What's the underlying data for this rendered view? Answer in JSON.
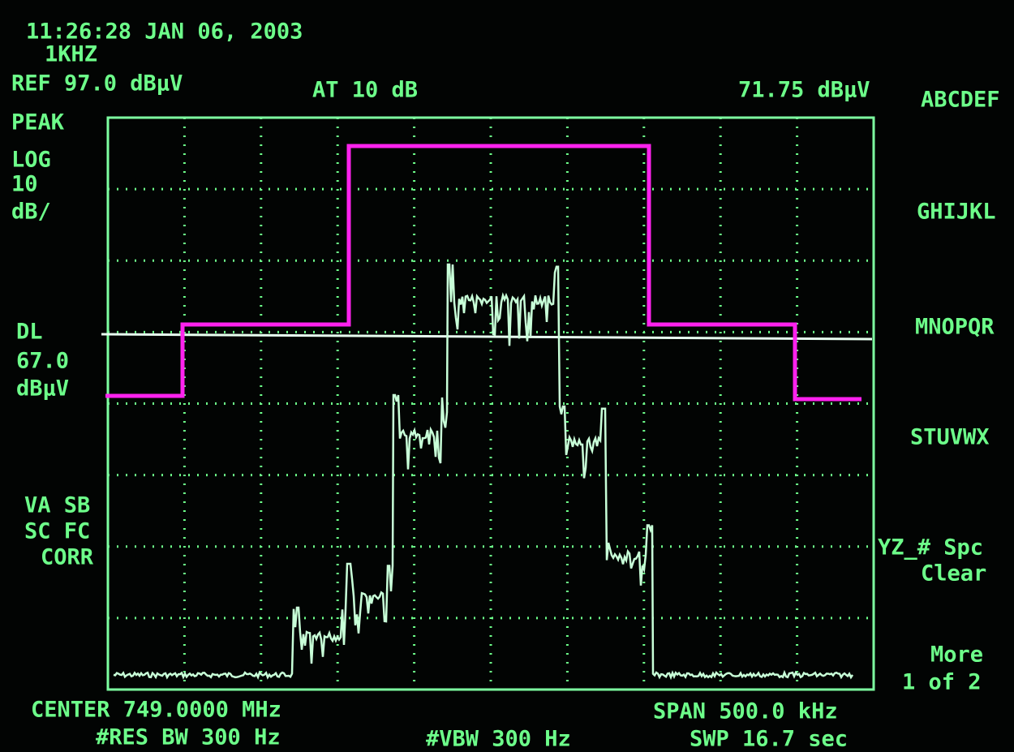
{
  "header": {
    "time": "11:26:28 JAN 06, 2003",
    "marker": "1KHZ",
    "reference": "REF 97.0 dBµV",
    "attenuation": "AT 10 dB",
    "marker_value": "71.75 dBµV"
  },
  "left_panel": {
    "detector": "PEAK",
    "scale_type": "LOG",
    "scale_value": "10",
    "scale_unit": "dB/",
    "display_line": "DL",
    "display_line_value": "67.0",
    "display_line_unit": "dBµV",
    "status_1": "VA SB",
    "status_2": "SC FC",
    "status_3": "CORR"
  },
  "softkeys": [
    "ABCDEF",
    "GHIJKL",
    "MNOPQR",
    "STUVWX",
    "YZ_# Spc",
    "Clear",
    "More",
    "1 of 2"
  ],
  "footer": {
    "center": "CENTER 749.0000 MHz",
    "span": "SPAN 500.0 kHz",
    "res_bw": "#RES BW 300 Hz",
    "vbw": "#VBW 300 Hz",
    "sweep": "SWP 16.7 sec"
  }
}
